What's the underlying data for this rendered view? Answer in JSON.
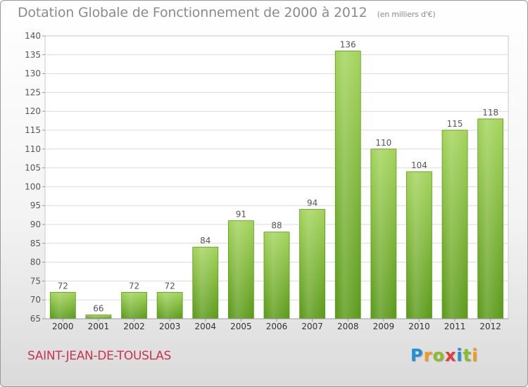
{
  "title": "Dotation Globale de Fonctionnement de 2000 à 2012",
  "subtitle": "(en milliers d'€)",
  "commune": "SAINT-JEAN-DE-TOUSLAS",
  "logo": {
    "text": "Proxiti",
    "letters": [
      {
        "char": "P",
        "color": "#1f8fd6"
      },
      {
        "char": "r",
        "color": "#f29a1e"
      },
      {
        "char": "o",
        "color": "#8bbd2a"
      },
      {
        "char": "x",
        "color": "#e23b3b"
      },
      {
        "char": "i",
        "color": "#1f8fd6"
      },
      {
        "char": "t",
        "color": "#8bbd2a"
      },
      {
        "char": "i",
        "color": "#f29a1e"
      }
    ]
  },
  "chart_data": {
    "type": "bar",
    "categories": [
      "2000",
      "2001",
      "2002",
      "2003",
      "2004",
      "2005",
      "2006",
      "2007",
      "2008",
      "2009",
      "2010",
      "2011",
      "2012"
    ],
    "values": [
      72,
      66,
      72,
      72,
      84,
      91,
      88,
      94,
      136,
      110,
      104,
      115,
      118
    ],
    "ylim": [
      65,
      140
    ],
    "yticks": [
      65,
      70,
      75,
      80,
      85,
      90,
      95,
      100,
      105,
      110,
      115,
      120,
      125,
      130,
      135,
      140
    ],
    "grid": true,
    "bar_color": "#7cba2f",
    "bar_color_light": "#a4d45c",
    "bar_color_dark": "#5b9a1a"
  }
}
